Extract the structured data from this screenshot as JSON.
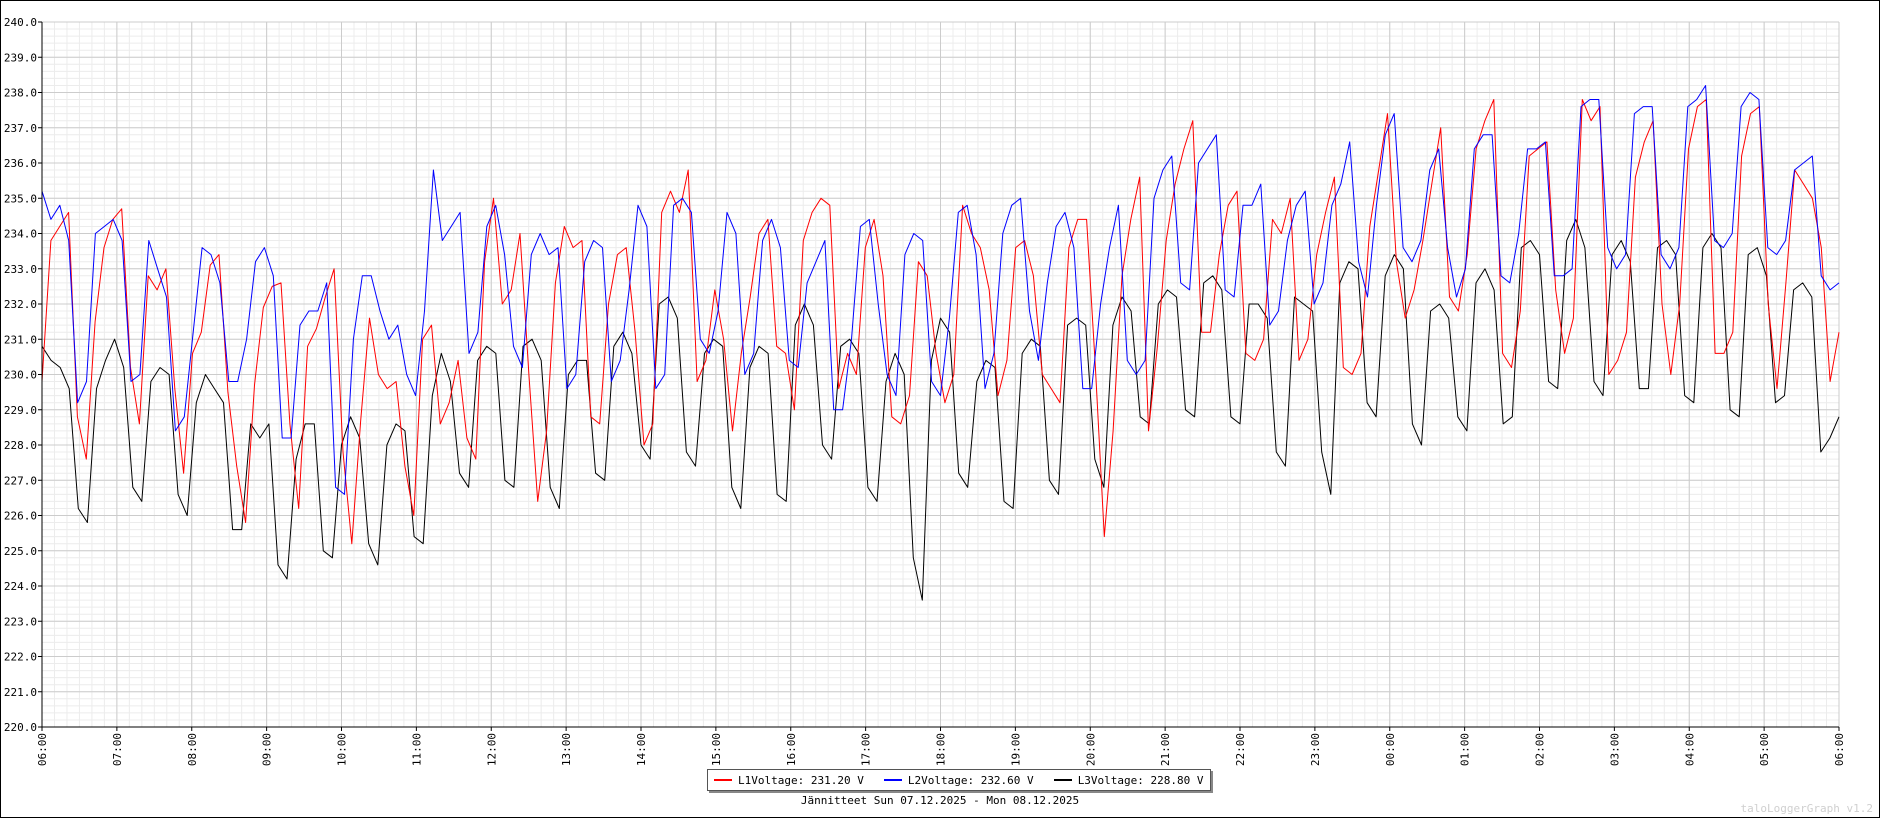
{
  "chart_data": {
    "type": "line",
    "title": "",
    "caption": "Jännitteet Sun 07.12.2025 - Mon 08.12.2025",
    "xlabel": "",
    "ylabel": "",
    "ylim": [
      220.0,
      240.0
    ],
    "y_ticks": [
      "220.0",
      "221.0",
      "222.0",
      "223.0",
      "224.0",
      "225.0",
      "226.0",
      "227.0",
      "228.0",
      "229.0",
      "230.0",
      "231.0",
      "232.0",
      "233.0",
      "234.0",
      "235.0",
      "236.0",
      "237.0",
      "238.0",
      "239.0",
      "240.0"
    ],
    "x_ticks": [
      "06:00",
      "07:00",
      "08:00",
      "09:00",
      "10:00",
      "11:00",
      "12:00",
      "13:00",
      "14:00",
      "15:00",
      "16:00",
      "17:00",
      "18:00",
      "19:00",
      "20:00",
      "21:00",
      "22:00",
      "23:00",
      "00:00",
      "01:00",
      "02:00",
      "03:00",
      "04:00",
      "05:00",
      "06:00"
    ],
    "grid": true,
    "legend_position": "bottom-center",
    "series": [
      {
        "name": "L1Voltage",
        "legend_label": "L1Voltage: 231.20 V",
        "color": "#ff0000",
        "values": [
          229.8,
          233.8,
          234.2,
          234.6,
          228.8,
          227.6,
          231.5,
          233.6,
          234.4,
          234.7,
          230.2,
          228.6,
          232.8,
          232.4,
          233.0,
          229.6,
          227.2,
          230.6,
          231.2,
          233.1,
          233.4,
          229.5,
          227.4,
          225.8,
          229.7,
          231.9,
          232.5,
          232.6,
          228.6,
          226.2,
          230.8,
          231.3,
          232.2,
          233.0,
          227.8,
          225.2,
          228.7,
          231.6,
          230.0,
          229.6,
          229.8,
          227.4,
          226.0,
          231.0,
          231.4,
          228.6,
          229.2,
          230.4,
          228.2,
          227.6,
          233.2,
          235.0,
          232.0,
          232.4,
          234.0,
          230.0,
          226.4,
          228.4,
          232.6,
          234.2,
          233.6,
          233.8,
          228.8,
          228.6,
          232.0,
          233.4,
          233.6,
          231.2,
          228.0,
          228.6,
          234.6,
          235.2,
          234.6,
          235.8,
          229.8,
          230.4,
          232.4,
          231.0,
          228.4,
          230.6,
          232.2,
          234.0,
          234.4,
          230.8,
          230.6,
          229.0,
          233.8,
          234.6,
          235.0,
          234.8,
          229.6,
          230.6,
          230.0,
          233.6,
          234.4,
          232.8,
          228.8,
          228.6,
          229.4,
          233.2,
          232.8,
          230.6,
          229.2,
          230.0,
          234.8,
          234.0,
          233.6,
          232.4,
          229.4,
          230.4,
          233.6,
          233.8,
          232.8,
          230.0,
          229.6,
          229.2,
          233.6,
          234.4,
          234.4,
          230.2,
          225.4,
          228.4,
          232.8,
          234.4,
          235.6,
          228.4,
          230.8,
          233.8,
          235.4,
          236.4,
          237.2,
          231.2,
          231.2,
          233.4,
          234.8,
          235.2,
          230.6,
          230.4,
          231.0,
          234.4,
          234.0,
          235.0,
          230.4,
          231.0,
          233.4,
          234.6,
          235.6,
          230.2,
          230.0,
          230.6,
          234.2,
          235.8,
          237.4,
          233.2,
          231.6,
          232.4,
          233.8,
          235.4,
          237.0,
          232.2,
          231.8,
          233.4,
          236.4,
          237.2,
          237.8,
          230.6,
          230.2,
          231.8,
          236.2,
          236.4,
          236.6,
          232.4,
          230.6,
          231.6,
          237.8,
          237.2,
          237.6,
          230.0,
          230.4,
          231.2,
          235.6,
          236.6,
          237.2,
          232.0,
          230.0,
          232.0,
          236.4,
          237.6,
          237.8,
          230.6,
          230.6,
          231.2,
          236.2,
          237.4,
          237.6,
          232.0,
          229.6,
          232.6,
          235.8,
          235.4,
          235.0,
          233.6,
          229.8,
          231.2
        ]
      },
      {
        "name": "L2Voltage",
        "legend_label": "L2Voltage: 232.60 V",
        "color": "#0000ff",
        "values": [
          235.2,
          234.4,
          234.8,
          233.8,
          229.2,
          229.8,
          234.0,
          234.2,
          234.4,
          233.8,
          229.8,
          230.0,
          233.8,
          233.0,
          232.2,
          228.4,
          228.8,
          231.2,
          233.6,
          233.4,
          232.6,
          229.8,
          229.8,
          231.0,
          233.2,
          233.6,
          232.8,
          228.2,
          228.2,
          231.4,
          231.8,
          231.8,
          232.6,
          226.8,
          226.6,
          231.0,
          232.8,
          232.8,
          231.8,
          231.0,
          231.4,
          230.0,
          229.4,
          231.8,
          235.8,
          233.8,
          234.2,
          234.6,
          230.6,
          231.2,
          234.2,
          234.8,
          233.4,
          230.8,
          230.2,
          233.4,
          234.0,
          233.4,
          233.6,
          229.6,
          230.0,
          233.2,
          233.8,
          233.6,
          229.8,
          230.4,
          232.4,
          234.8,
          234.2,
          229.6,
          230.0,
          234.8,
          235.0,
          234.6,
          231.0,
          230.6,
          231.8,
          234.6,
          234.0,
          230.0,
          230.6,
          233.8,
          234.4,
          233.6,
          230.4,
          230.2,
          232.6,
          233.2,
          233.8,
          229.0,
          229.0,
          231.0,
          234.2,
          234.4,
          232.0,
          230.0,
          229.4,
          233.4,
          234.0,
          233.8,
          229.8,
          229.4,
          231.6,
          234.6,
          234.8,
          233.4,
          229.6,
          230.6,
          234.0,
          234.8,
          235.0,
          231.8,
          230.4,
          232.6,
          234.2,
          234.6,
          233.6,
          229.6,
          229.6,
          232.0,
          233.6,
          234.8,
          230.4,
          230.0,
          230.4,
          235.0,
          235.8,
          236.2,
          232.6,
          232.4,
          236.0,
          236.4,
          236.8,
          232.4,
          232.2,
          234.8,
          234.8,
          235.4,
          231.4,
          231.8,
          233.8,
          234.8,
          235.2,
          232.0,
          232.6,
          234.8,
          235.4,
          236.6,
          233.2,
          232.2,
          234.8,
          236.8,
          237.4,
          233.6,
          233.2,
          233.8,
          235.8,
          236.4,
          233.6,
          232.2,
          233.0,
          236.4,
          236.8,
          236.8,
          232.8,
          232.6,
          234.0,
          236.4,
          236.4,
          236.6,
          232.8,
          232.8,
          233.0,
          237.6,
          237.8,
          237.8,
          233.6,
          233.0,
          233.4,
          237.4,
          237.6,
          237.6,
          233.4,
          233.0,
          233.6,
          237.6,
          237.8,
          238.2,
          233.8,
          233.6,
          234.0,
          237.6,
          238.0,
          237.8,
          233.6,
          233.4,
          233.8,
          235.8,
          236.0,
          236.2,
          232.8,
          232.4,
          232.6
        ]
      },
      {
        "name": "L3Voltage",
        "legend_label": "L3Voltage: 228.80 V",
        "color": "#000000",
        "values": [
          230.8,
          230.4,
          230.2,
          229.6,
          226.2,
          225.8,
          229.6,
          230.4,
          231.0,
          230.2,
          226.8,
          226.4,
          229.8,
          230.2,
          230.0,
          226.6,
          226.0,
          229.2,
          230.0,
          229.6,
          229.2,
          225.6,
          225.6,
          228.6,
          228.2,
          228.6,
          224.6,
          224.2,
          227.6,
          228.6,
          228.6,
          225.0,
          224.8,
          228.0,
          228.8,
          228.2,
          225.2,
          224.6,
          228.0,
          228.6,
          228.4,
          225.4,
          225.2,
          229.4,
          230.6,
          229.8,
          227.2,
          226.8,
          230.4,
          230.8,
          230.6,
          227.0,
          226.8,
          230.8,
          231.0,
          230.4,
          226.8,
          226.2,
          230.0,
          230.4,
          230.4,
          227.2,
          227.0,
          230.8,
          231.2,
          230.6,
          228.0,
          227.6,
          232.0,
          232.2,
          231.6,
          227.8,
          227.4,
          230.6,
          231.0,
          230.8,
          226.8,
          226.2,
          230.2,
          230.8,
          230.6,
          226.6,
          226.4,
          231.4,
          232.0,
          231.4,
          228.0,
          227.6,
          230.8,
          231.0,
          230.6,
          226.8,
          226.4,
          229.8,
          230.6,
          230.0,
          224.8,
          223.6,
          230.4,
          231.6,
          231.2,
          227.2,
          226.8,
          229.8,
          230.4,
          230.2,
          226.4,
          226.2,
          230.6,
          231.0,
          230.8,
          227.0,
          226.6,
          231.4,
          231.6,
          231.4,
          227.6,
          226.8,
          231.4,
          232.2,
          231.8,
          228.8,
          228.6,
          232.0,
          232.4,
          232.2,
          229.0,
          228.8,
          232.6,
          232.8,
          232.4,
          228.8,
          228.6,
          232.0,
          232.0,
          231.6,
          227.8,
          227.4,
          232.2,
          232.0,
          231.8,
          227.8,
          226.6,
          232.6,
          233.2,
          233.0,
          229.2,
          228.8,
          232.8,
          233.4,
          233.0,
          228.6,
          228.0,
          231.8,
          232.0,
          231.6,
          228.8,
          228.4,
          232.6,
          233.0,
          232.4,
          228.6,
          228.8,
          233.6,
          233.8,
          233.4,
          229.8,
          229.6,
          233.8,
          234.4,
          233.6,
          229.8,
          229.4,
          233.4,
          233.8,
          233.2,
          229.6,
          229.6,
          233.6,
          233.8,
          233.4,
          229.4,
          229.2,
          233.6,
          234.0,
          233.6,
          229.0,
          228.8,
          233.4,
          233.6,
          232.8,
          229.2,
          229.4,
          232.4,
          232.6,
          232.2,
          227.8,
          228.2,
          228.8
        ]
      }
    ]
  },
  "watermark": "taloLoggerGraph v1.2"
}
